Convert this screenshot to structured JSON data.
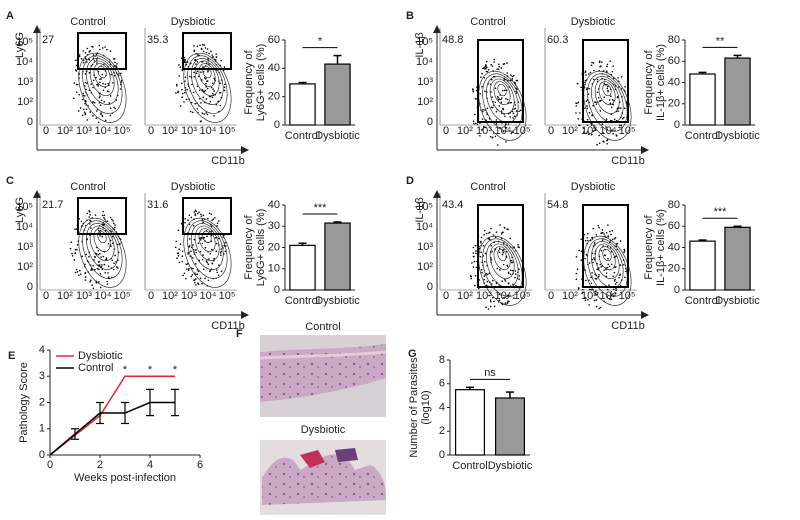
{
  "flow_tick_labels": [
    "0",
    "10²",
    "10³",
    "10⁴",
    "10⁵"
  ],
  "panels": [
    {
      "letter": "A",
      "y_label": "Ly6G",
      "x_label": "CD11b",
      "plots": [
        {
          "title": "Control",
          "gate": "27"
        },
        {
          "title": "Dysbiotic",
          "gate": "35.3"
        }
      ]
    },
    {
      "letter": "B",
      "y_label": "IL-1β",
      "x_label": "CD11b",
      "plots": [
        {
          "title": "Control",
          "gate": "48.8"
        },
        {
          "title": "Dysbiotic",
          "gate": "60.3"
        }
      ]
    },
    {
      "letter": "C",
      "y_label": "Ly6G",
      "x_label": "CD11b",
      "plots": [
        {
          "title": "Control",
          "gate": "21.7"
        },
        {
          "title": "Dysbiotic",
          "gate": "31.6"
        }
      ]
    },
    {
      "letter": "D",
      "y_label": "IL-1β",
      "x_label": "CD11b",
      "plots": [
        {
          "title": "Control",
          "gate": "43.4"
        },
        {
          "title": "Dysbiotic",
          "gate": "54.8"
        }
      ]
    }
  ],
  "histology": {
    "letter": "F",
    "labels": [
      "Control",
      "Dysbiotic"
    ]
  },
  "chart_data": [
    {
      "type": "bar",
      "categories": [
        "Control",
        "Dysbiotic"
      ],
      "values": [
        29,
        43
      ],
      "errors": [
        1,
        6
      ],
      "colors": [
        "#ffffff",
        "#999999"
      ],
      "y_label": [
        "Frequency of",
        "Ly6G+ cells (%)"
      ],
      "ylim": [
        0,
        60
      ],
      "yticks": [
        0,
        20,
        40,
        60
      ],
      "significance": "*"
    },
    {
      "type": "bar",
      "categories": [
        "Control",
        "Dysbiotic"
      ],
      "values": [
        48,
        63
      ],
      "errors": [
        1.5,
        2.5
      ],
      "colors": [
        "#ffffff",
        "#999999"
      ],
      "y_label": [
        "Frequency of",
        "IL-1β+ cells (%)"
      ],
      "ylim": [
        0,
        80
      ],
      "yticks": [
        0,
        20,
        40,
        60,
        80
      ],
      "significance": "**"
    },
    {
      "type": "bar",
      "categories": [
        "Control",
        "Dysbiotic"
      ],
      "values": [
        21,
        31.5
      ],
      "errors": [
        1,
        0.5
      ],
      "colors": [
        "#ffffff",
        "#999999"
      ],
      "y_label": [
        "Frequency of",
        "Ly6G+ cells (%)"
      ],
      "ylim": [
        0,
        40
      ],
      "yticks": [
        0,
        10,
        20,
        30,
        40
      ],
      "significance": "***"
    },
    {
      "type": "bar",
      "categories": [
        "Control",
        "Dysbiotic"
      ],
      "values": [
        46,
        59
      ],
      "errors": [
        1,
        1
      ],
      "colors": [
        "#ffffff",
        "#999999"
      ],
      "y_label": [
        "Frequency of",
        "IL-1β+ cells (%)"
      ],
      "ylim": [
        0,
        80
      ],
      "yticks": [
        0,
        20,
        40,
        60,
        80
      ],
      "significance": "***"
    },
    {
      "type": "line",
      "letter": "E",
      "x_label": "Weeks post-infection",
      "y_label": "Pathology Score",
      "xlim": [
        0,
        6
      ],
      "xticks": [
        0,
        2,
        4,
        6
      ],
      "ylim": [
        0,
        4
      ],
      "yticks": [
        0,
        1,
        2,
        3,
        4
      ],
      "legend": "top-left",
      "series": [
        {
          "name": "Dysbiotic",
          "color": "#e8262b",
          "x": [
            0,
            2,
            3,
            4,
            5
          ],
          "values": [
            0,
            1.5,
            3,
            3,
            3
          ]
        },
        {
          "name": "Control",
          "color": "#000000",
          "x": [
            0,
            1,
            2,
            3,
            4,
            5
          ],
          "values": [
            0,
            0.8,
            1.6,
            1.6,
            2,
            2
          ],
          "errors": [
            0,
            0.2,
            0.4,
            0.4,
            0.5,
            0.5
          ]
        }
      ],
      "annotations": [
        {
          "x": 3,
          "label": "*"
        },
        {
          "x": 4,
          "label": "*"
        },
        {
          "x": 5,
          "label": "*"
        }
      ]
    },
    {
      "type": "bar",
      "letter": "G",
      "categories": [
        "Control",
        "Dysbiotic"
      ],
      "values": [
        5.5,
        4.8
      ],
      "errors": [
        0.2,
        0.5
      ],
      "colors": [
        "#ffffff",
        "#999999"
      ],
      "y_label": [
        "Number of Parasites",
        "(log10)"
      ],
      "ylim": [
        0,
        8
      ],
      "yticks": [
        0,
        2,
        4,
        6,
        8
      ],
      "significance": "ns"
    }
  ]
}
